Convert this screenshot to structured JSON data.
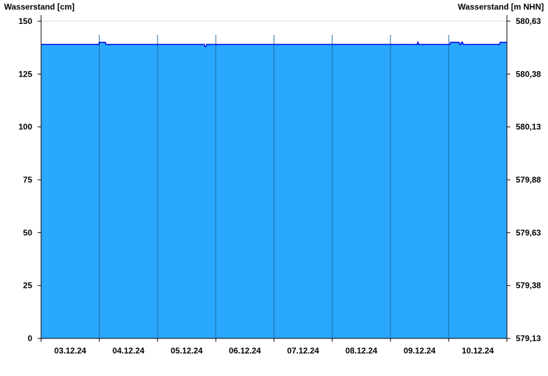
{
  "chart_data": {
    "type": "area",
    "ylabel": "Wasserstand [cm]",
    "ylabel_right": "Wasserstand [m NHN]",
    "ylim": [
      0,
      150
    ],
    "yticks": [
      0,
      25,
      50,
      75,
      100,
      125,
      150
    ],
    "yticks_right": [
      "579,13",
      "579,38",
      "579,63",
      "579,88",
      "580,13",
      "580,38",
      "580,63"
    ],
    "xlim": [
      "2024-12-03T00:00",
      "2024-12-11T00:00"
    ],
    "xtick_labels": [
      "03.12.24",
      "04.12.24",
      "05.12.24",
      "06.12.24",
      "07.12.24",
      "08.12.24",
      "09.12.24",
      "10.12.24"
    ],
    "grid": "horizontal at top tick, vertical day separators",
    "fill_color": "#2aa8ff",
    "line_color": "#0000ee",
    "points": [
      [
        "2024-12-03T00:00",
        139
      ],
      [
        "2024-12-03T23:45",
        139
      ],
      [
        "2024-12-04T00:00",
        140
      ],
      [
        "2024-12-04T02:30",
        140
      ],
      [
        "2024-12-04T02:45",
        139
      ],
      [
        "2024-12-05T19:15",
        139
      ],
      [
        "2024-12-05T19:30",
        138
      ],
      [
        "2024-12-05T20:00",
        138
      ],
      [
        "2024-12-05T20:15",
        139
      ],
      [
        "2024-12-09T11:00",
        139
      ],
      [
        "2024-12-09T11:20",
        140
      ],
      [
        "2024-12-09T11:40",
        139
      ],
      [
        "2024-12-10T00:30",
        139
      ],
      [
        "2024-12-10T00:45",
        140
      ],
      [
        "2024-12-10T04:15",
        140
      ],
      [
        "2024-12-10T04:30",
        139
      ],
      [
        "2024-12-10T05:00",
        139
      ],
      [
        "2024-12-10T05:15",
        140
      ],
      [
        "2024-12-10T05:40",
        140
      ],
      [
        "2024-12-10T06:00",
        139
      ],
      [
        "2024-12-10T21:00",
        139
      ],
      [
        "2024-12-10T21:15",
        140
      ],
      [
        "2024-12-11T00:00",
        140
      ]
    ]
  }
}
